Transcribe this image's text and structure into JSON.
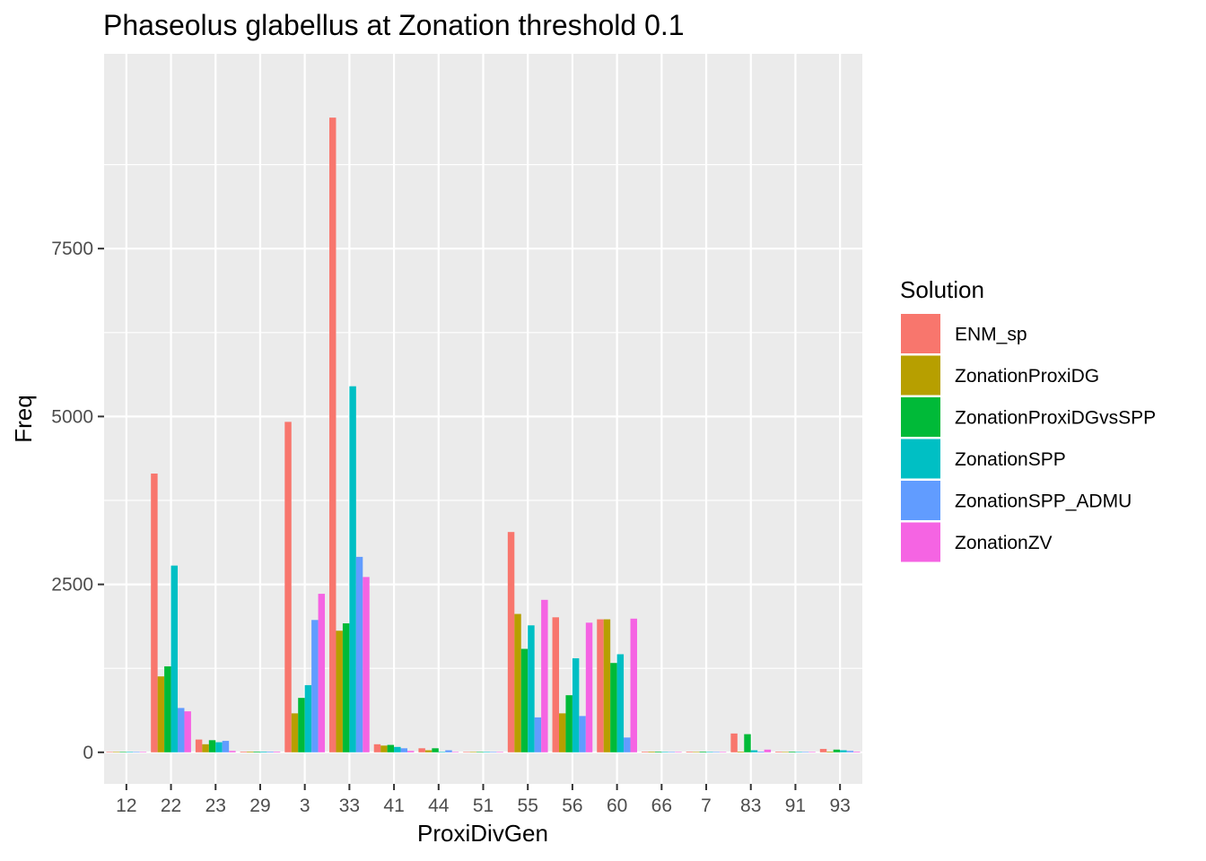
{
  "chart_data": {
    "type": "bar",
    "title": "Phaseolus glabellus at Zonation threshold 0.1",
    "xlabel": "ProxiDivGen",
    "ylabel": "Freq",
    "categories": [
      "12",
      "22",
      "23",
      "29",
      "3",
      "33",
      "41",
      "44",
      "51",
      "55",
      "56",
      "60",
      "66",
      "7",
      "83",
      "91",
      "93"
    ],
    "ylim": [
      -470,
      10400
    ],
    "yticks": [
      0,
      2500,
      5000,
      7500
    ],
    "grid": true,
    "legend": {
      "title": "Solution",
      "position": "right"
    },
    "series": [
      {
        "name": "ENM_sp",
        "color": "#F8766D",
        "values": [
          5,
          4150,
          190,
          10,
          4920,
          9450,
          120,
          60,
          5,
          3280,
          2010,
          1980,
          10,
          10,
          280,
          10,
          50
        ]
      },
      {
        "name": "ZonationProxiDG",
        "color": "#B79F00",
        "values": [
          5,
          1130,
          120,
          10,
          580,
          1810,
          100,
          30,
          5,
          2060,
          580,
          1980,
          10,
          5,
          10,
          5,
          10
        ]
      },
      {
        "name": "ZonationProxiDGvsSPP",
        "color": "#00BA38",
        "values": [
          5,
          1280,
          180,
          10,
          810,
          1920,
          110,
          60,
          5,
          1540,
          850,
          1330,
          10,
          10,
          270,
          10,
          40
        ]
      },
      {
        "name": "ZonationSPP",
        "color": "#00BFC4",
        "values": [
          5,
          2780,
          150,
          10,
          1000,
          5450,
          80,
          5,
          5,
          1890,
          1400,
          1460,
          5,
          5,
          30,
          5,
          30
        ]
      },
      {
        "name": "ZonationSPP_ADMU",
        "color": "#619CFF",
        "values": [
          5,
          660,
          170,
          10,
          1970,
          2910,
          60,
          30,
          5,
          520,
          540,
          220,
          5,
          5,
          10,
          5,
          20
        ]
      },
      {
        "name": "ZonationZV",
        "color": "#F564E3",
        "values": [
          5,
          610,
          20,
          10,
          2360,
          2610,
          20,
          5,
          5,
          2270,
          1930,
          1990,
          5,
          5,
          40,
          5,
          10
        ]
      }
    ]
  }
}
